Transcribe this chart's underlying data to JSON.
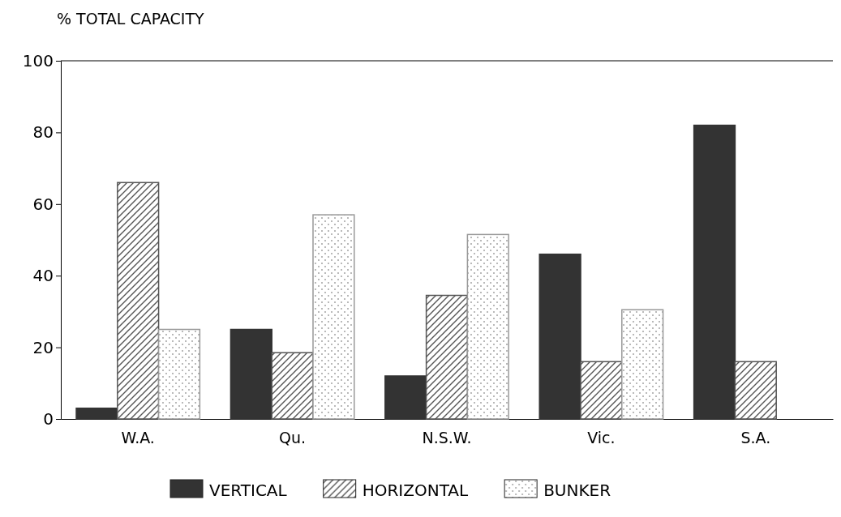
{
  "chart_data": {
    "type": "bar",
    "ylabel": "% TOTAL CAPACITY",
    "categories": [
      "W.A.",
      "Qu.",
      "N.S.W.",
      "Vic.",
      "S.A."
    ],
    "series": [
      {
        "name": "VERTICAL",
        "color": "#333333",
        "values": [
          3,
          25,
          12,
          46,
          82
        ]
      },
      {
        "name": "HORIZONTAL",
        "color": "#555555",
        "values": [
          66,
          18.5,
          34.5,
          16,
          16
        ]
      },
      {
        "name": "BUNKER",
        "color": "#999999",
        "values": [
          25,
          57,
          51.5,
          30.5,
          null
        ]
      }
    ],
    "ylim": [
      0,
      100
    ],
    "yticks": [
      0,
      20,
      40,
      60,
      80,
      100
    ],
    "grid": false,
    "legend": "bottom"
  }
}
